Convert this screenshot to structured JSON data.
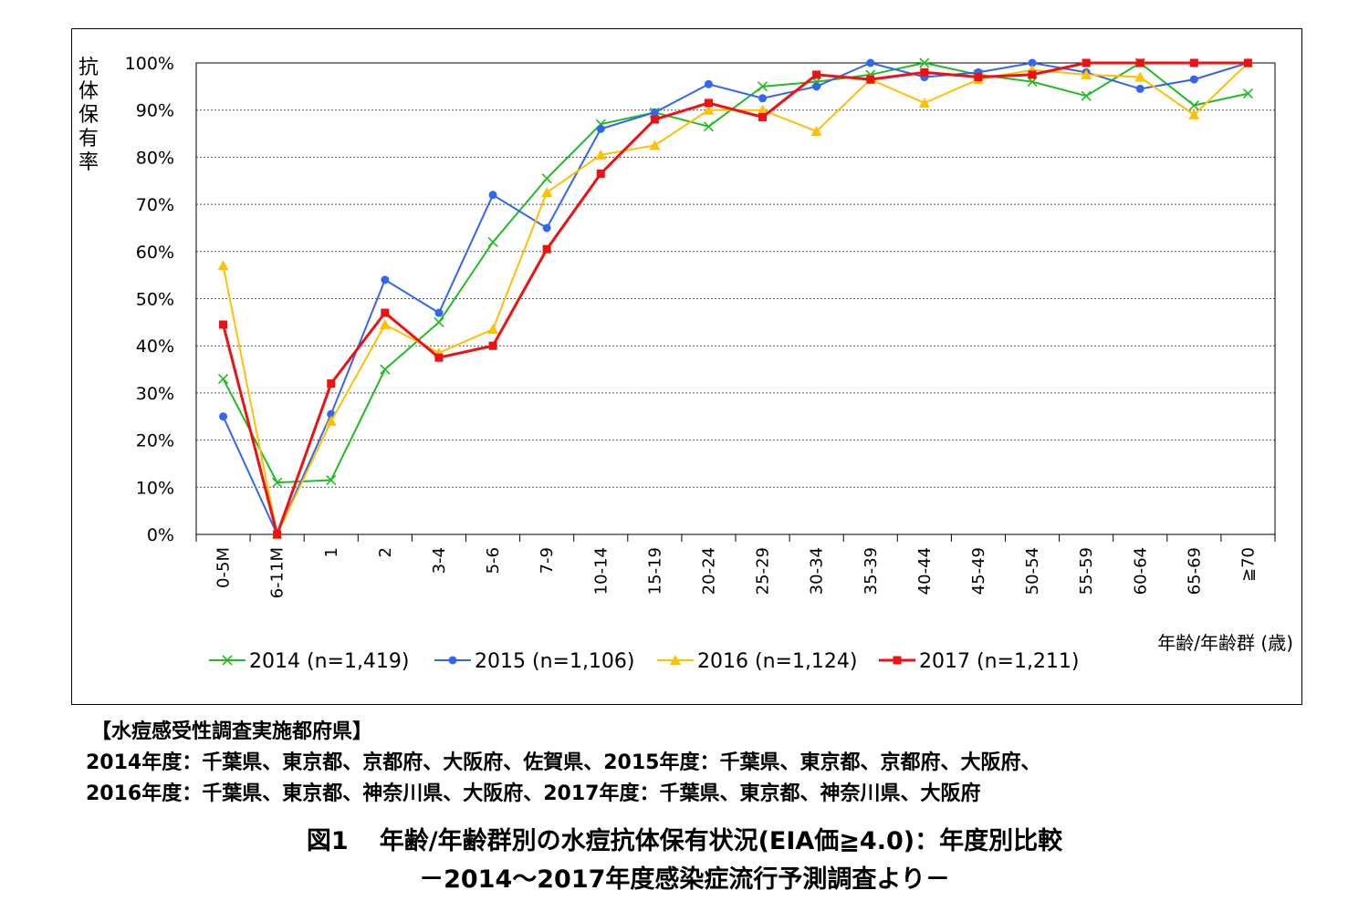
{
  "chart_data": {
    "type": "line",
    "ylabel": "抗体保有率",
    "xlabel": "年齢/年齢群 (歳)",
    "ylim": [
      0,
      100
    ],
    "yticks": [
      "0%",
      "10%",
      "20%",
      "30%",
      "40%",
      "50%",
      "60%",
      "70%",
      "80%",
      "90%",
      "100%"
    ],
    "grid": "horizontal dotted",
    "legend_position": "bottom",
    "categories": [
      "0-5M",
      "6-11M",
      "1",
      "2",
      "3-4",
      "5-6",
      "7-9",
      "10-14",
      "15-19",
      "20-24",
      "25-29",
      "30-34",
      "35-39",
      "40-44",
      "45-49",
      "50-54",
      "55-59",
      "60-64",
      "65-69",
      "≧70"
    ],
    "series": [
      {
        "name": "2014 (n=1,419)",
        "color": "#22bb22",
        "marker": "x",
        "values": [
          33,
          11,
          11.5,
          35,
          45,
          62,
          75.5,
          87,
          89.5,
          86.5,
          95,
          96,
          97.5,
          100,
          97.5,
          96,
          93,
          100,
          91,
          93.5
        ]
      },
      {
        "name": "2015 (n=1,106)",
        "color": "#3366ee",
        "marker": "circle",
        "values": [
          25,
          0,
          25.5,
          54,
          47,
          72,
          65,
          86,
          89.5,
          95.5,
          92.5,
          95,
          100,
          97,
          98,
          100,
          98,
          94.5,
          96.5,
          100
        ]
      },
      {
        "name": "2016 (n=1,124)",
        "color": "#ffc000",
        "marker": "triangle",
        "values": [
          57,
          0,
          24,
          44.5,
          38.5,
          43.5,
          72.5,
          80.5,
          82.5,
          90,
          90,
          85.5,
          96.5,
          91.5,
          96.5,
          98.5,
          97.5,
          97,
          89,
          100
        ]
      },
      {
        "name": "2017 (n=1,211)",
        "color": "#ee1111",
        "marker": "square",
        "values": [
          44.5,
          0,
          32,
          47,
          37.5,
          40,
          60.5,
          76.5,
          88,
          91.5,
          88.5,
          97.5,
          96.5,
          98,
          97,
          97.5,
          100,
          100,
          100,
          100
        ]
      }
    ]
  },
  "notes": {
    "header": "【水痘感受性調査実施都府県】",
    "line1": "2014年度：千葉県、東京都、京都府、大阪府、佐賀県、2015年度：千葉県、東京都、京都府、大阪府、",
    "line2": "2016年度：千葉県、東京都、神奈川県、大阪府、2017年度：千葉県、東京都、神奈川県、大阪府"
  },
  "caption": {
    "figure_number": "図1",
    "title": "年齢/年齢群別の水痘抗体保有状況(EIA価≧4.0)：年度別比較",
    "subtitle": "－2014～2017年度感染症流行予測調査より－"
  }
}
